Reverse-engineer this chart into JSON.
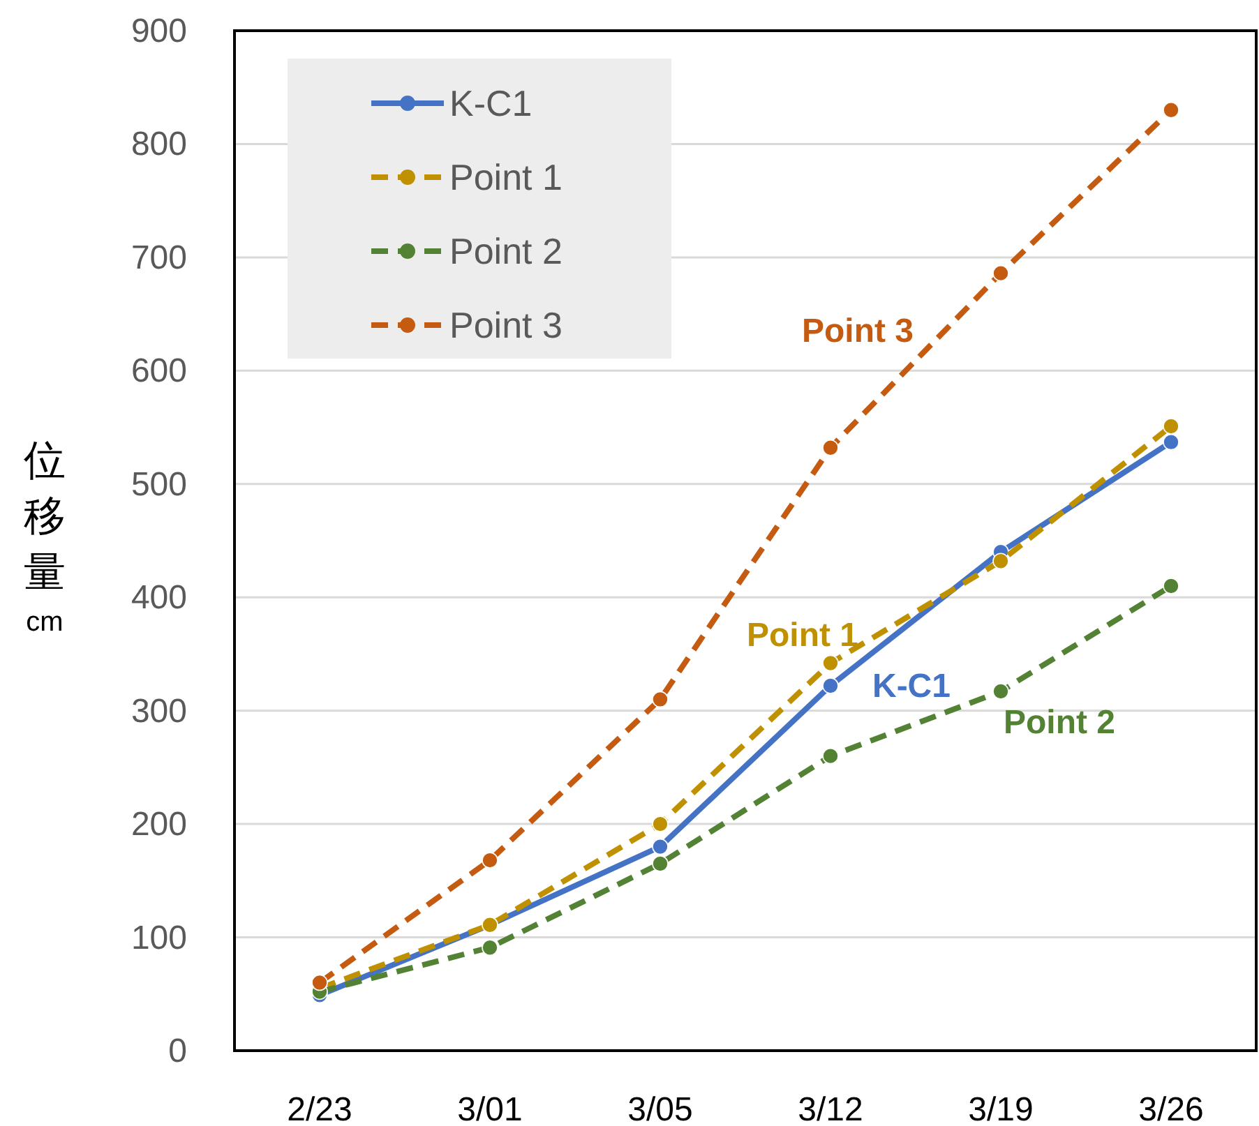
{
  "chart_data": {
    "type": "line",
    "ylabel": "位移量 cm",
    "categories": [
      "2/23",
      "3/01",
      "3/05",
      "3/12",
      "3/19",
      "3/26"
    ],
    "series": [
      {
        "name": "K-C1",
        "color": "#4472c4",
        "line_style": "solid",
        "marker": "circle",
        "values": [
          49,
          111,
          180,
          322,
          440,
          537
        ]
      },
      {
        "name": "Point 1",
        "color": "#bf9000",
        "line_style": "dashed",
        "marker": "circle",
        "values": [
          55,
          111,
          200,
          342,
          432,
          551
        ]
      },
      {
        "name": "Point 2",
        "color": "#548235",
        "line_style": "dashed",
        "marker": "circle",
        "values": [
          52,
          91,
          165,
          260,
          317,
          410
        ]
      },
      {
        "name": "Point 3",
        "color": "#c55a11",
        "line_style": "dashed",
        "marker": "circle",
        "values": [
          60,
          168,
          310,
          532,
          686,
          830
        ]
      }
    ],
    "annotations": [
      {
        "text": "K-C1",
        "x": "3/12",
        "y": 322
      },
      {
        "text": "Point 1",
        "x": "3/12",
        "y": 342
      },
      {
        "text": "Point 2",
        "x": "3/19",
        "y": 317
      },
      "Point 3"
    ],
    "ylim": [
      0,
      900
    ],
    "yticks": [
      0,
      100,
      200,
      300,
      400,
      500,
      600,
      700,
      800,
      900
    ],
    "grid": "y",
    "legend": "top left"
  }
}
